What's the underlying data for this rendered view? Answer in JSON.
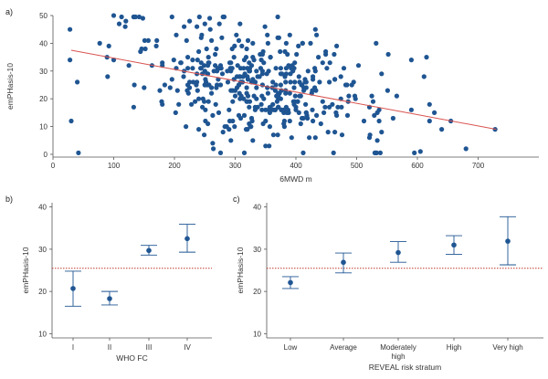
{
  "colors": {
    "point": "#1f5592",
    "trend": "#d9534f",
    "reference": "#c0392b",
    "axis": "#555555"
  },
  "chart_data": [
    {
      "panel": "a)",
      "type": "scatter",
      "xlabel": "6MWD m",
      "ylabel": "emPHasis-10",
      "xlim": [
        0,
        800
      ],
      "ylim": [
        -1,
        50
      ],
      "xticks": [
        0,
        100,
        200,
        300,
        400,
        500,
        600,
        700
      ],
      "yticks": [
        0,
        10,
        20,
        30,
        40,
        50
      ],
      "trend": {
        "x": [
          30,
          730
        ],
        "y": [
          37.5,
          9
        ]
      },
      "points_note": "approximate cloud",
      "points": []
    },
    {
      "panel": "b)",
      "type": "errorbar",
      "xlabel": "WHO FC",
      "ylabel": "emPHasis-10",
      "ylim": [
        9,
        41
      ],
      "yticks": [
        10,
        20,
        30,
        40
      ],
      "reference_line": 25.5,
      "categories": [
        "I",
        "II",
        "III",
        "IV"
      ],
      "values": [
        20.7,
        18.3,
        29.7,
        32.5
      ],
      "lower": [
        16.5,
        16.8,
        28.6,
        29.3
      ],
      "upper": [
        24.8,
        20.0,
        30.9,
        35.9
      ]
    },
    {
      "panel": "c)",
      "type": "errorbar",
      "xlabel": "REVEAL risk stratum",
      "ylabel": "emPHasis-10",
      "ylim": [
        9,
        41
      ],
      "yticks": [
        10,
        20,
        30,
        40
      ],
      "reference_line": 25.5,
      "categories": [
        "Low",
        "Average",
        "Moderately\nhigh",
        "High",
        "Very high"
      ],
      "values": [
        22.1,
        26.9,
        29.2,
        31.0,
        31.9
      ],
      "lower": [
        20.7,
        24.4,
        26.9,
        28.8,
        26.3
      ],
      "upper": [
        23.5,
        29.1,
        31.8,
        33.2,
        37.7
      ]
    }
  ]
}
